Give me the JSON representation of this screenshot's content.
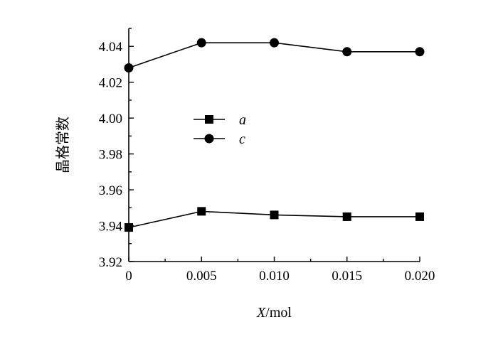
{
  "chart_data": {
    "type": "line",
    "x": [
      0,
      0.005,
      0.01,
      0.015,
      0.02
    ],
    "x_tick_labels": [
      "0",
      "0.005",
      "0.010",
      "0.015",
      "0.020"
    ],
    "xlim": [
      0,
      0.02
    ],
    "xlabel_italic": "X",
    "xlabel_rest": "/mol",
    "ylabel": "晶格常数",
    "ylim": [
      3.92,
      4.05
    ],
    "y_ticks": [
      3.92,
      3.94,
      3.96,
      3.98,
      4.0,
      4.02,
      4.04
    ],
    "y_tick_labels": [
      "3.92",
      "3.94",
      "3.96",
      "3.98",
      "4.00",
      "4.02",
      "4.04"
    ],
    "grid": false,
    "legend_position": "center-left",
    "series": [
      {
        "name": "a",
        "marker": "square",
        "color": "#000000",
        "values": [
          3.939,
          3.948,
          3.946,
          3.945,
          3.945
        ]
      },
      {
        "name": "c",
        "marker": "circle",
        "color": "#000000",
        "values": [
          4.028,
          4.042,
          4.042,
          4.037,
          4.037
        ]
      }
    ]
  }
}
